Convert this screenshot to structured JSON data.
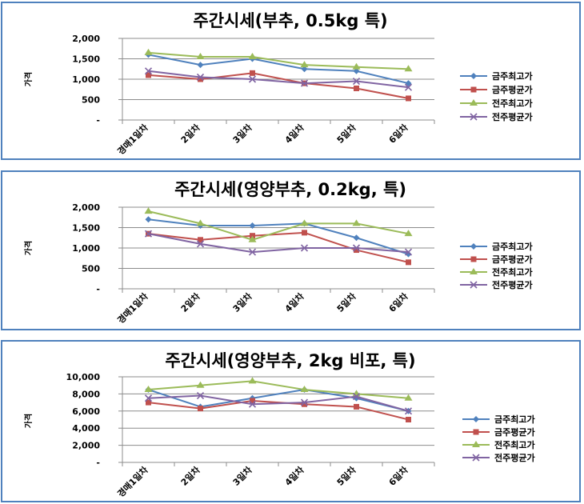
{
  "colors": {
    "border": "#4f81bd",
    "s1": "#4f81bd",
    "s2": "#c0504d",
    "s3": "#9bbb59",
    "s4": "#8064a2",
    "grid": "#8c8c8c"
  },
  "chart_data": [
    {
      "type": "line",
      "title": "주간시세(부추, 0.5kg 특)",
      "ylabel": "가격",
      "categories": [
        "경매1일차",
        "2일차",
        "3일차",
        "4일차",
        "5일차",
        "6일차"
      ],
      "ylim": [
        0,
        2000
      ],
      "yticks": [
        "-",
        "500",
        "1,000",
        "1,500",
        "2,000"
      ],
      "grid": true,
      "legend": "right",
      "series": [
        {
          "name": "금주최고가",
          "values": [
            1600,
            1350,
            1500,
            1250,
            1200,
            900
          ]
        },
        {
          "name": "금주평균가",
          "values": [
            1100,
            1000,
            1150,
            900,
            775,
            530
          ]
        },
        {
          "name": "전주최고가",
          "values": [
            1650,
            1550,
            1550,
            1350,
            1300,
            1250
          ]
        },
        {
          "name": "전주평균가",
          "values": [
            1200,
            1050,
            1000,
            900,
            950,
            800
          ]
        }
      ]
    },
    {
      "type": "line",
      "title": "주간시세(영양부추, 0.2kg, 특)",
      "ylabel": "가격",
      "categories": [
        "경매1일차",
        "2일차",
        "3일차",
        "4일차",
        "5일차",
        "6일차"
      ],
      "ylim": [
        0,
        2000
      ],
      "yticks": [
        "-",
        "500",
        "1,000",
        "1,500",
        "2,000"
      ],
      "grid": true,
      "legend": "right",
      "series": [
        {
          "name": "금주최고가",
          "values": [
            1700,
            1550,
            1550,
            1600,
            1250,
            850
          ]
        },
        {
          "name": "금주평균가",
          "values": [
            1350,
            1200,
            1300,
            1375,
            950,
            650
          ]
        },
        {
          "name": "전주최고가",
          "values": [
            1900,
            1600,
            1200,
            1600,
            1600,
            1350
          ]
        },
        {
          "name": "전주평균가",
          "values": [
            1350,
            1100,
            900,
            1000,
            1000,
            900
          ]
        }
      ]
    },
    {
      "type": "line",
      "title": "주간시세(영양부추, 2kg 비포, 특)",
      "ylabel": "가격",
      "categories": [
        "경매1일차",
        "2일차",
        "3일차",
        "4일차",
        "5일차",
        "6일차"
      ],
      "ylim": [
        0,
        10000
      ],
      "yticks": [
        "-",
        "2,000",
        "4,000",
        "6,000",
        "8,000",
        "10,000"
      ],
      "grid": true,
      "legend": "right",
      "series": [
        {
          "name": "금주최고가",
          "values": [
            8500,
            6500,
            7500,
            8500,
            7500,
            6000
          ]
        },
        {
          "name": "금주평균가",
          "values": [
            7000,
            6300,
            7200,
            6800,
            6500,
            5000
          ]
        },
        {
          "name": "전주최고가",
          "values": [
            8500,
            9000,
            9500,
            8500,
            8000,
            7500
          ]
        },
        {
          "name": "전주평균가",
          "values": [
            7500,
            7800,
            6800,
            7000,
            7700,
            6000
          ]
        }
      ]
    }
  ]
}
